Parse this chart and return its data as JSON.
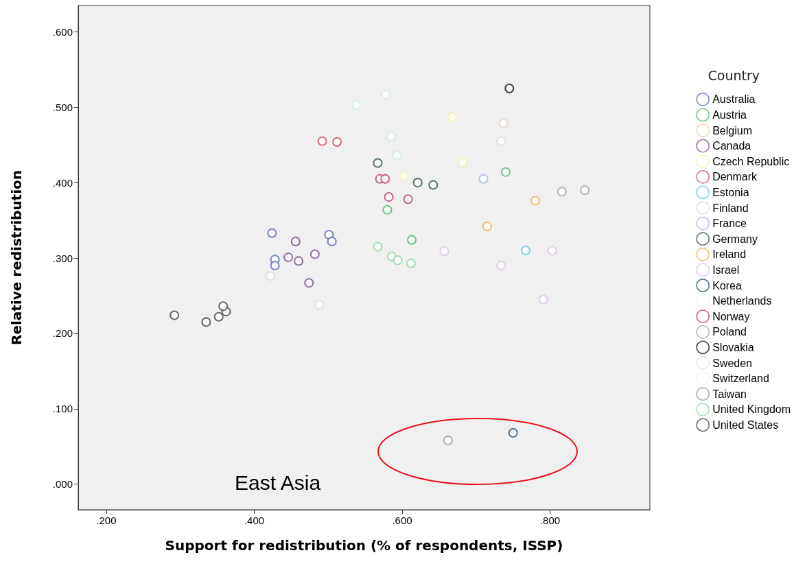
{
  "chart_data": {
    "type": "scatter",
    "xlabel": "Support for redistribution (% of respondents, ISSP)",
    "ylabel": "Relative redistribution",
    "legend_title": "Country",
    "legend": "right",
    "grid": false,
    "marker": "circle",
    "annotations": [
      "East Asia"
    ],
    "xlim": [
      0.162,
      0.935
    ],
    "ylim": [
      -0.034,
      0.635
    ],
    "xticks": [
      {
        "value": 0.2,
        "label": ".200"
      },
      {
        "value": 0.4,
        "label": ".400"
      },
      {
        "value": 0.6,
        "label": ".600"
      },
      {
        "value": 0.8,
        "label": ".800"
      }
    ],
    "yticks": [
      {
        "value": 0,
        "label": ".000"
      },
      {
        "value": 0.1,
        "label": ".100"
      },
      {
        "value": 0.2,
        "label": ".200"
      },
      {
        "value": 0.3,
        "label": ".300"
      },
      {
        "value": 0.4,
        "label": ".400"
      },
      {
        "value": 0.5,
        "label": ".500"
      },
      {
        "value": 0.6,
        "label": ".600"
      }
    ],
    "series": [
      {
        "name": "Australia",
        "color": "#5b6fb5",
        "x": [
          0.424,
          0.501,
          0.505,
          0.428,
          0.428
        ],
        "values": [
          0.333,
          0.331,
          0.322,
          0.298,
          0.29
        ]
      },
      {
        "name": "Austria",
        "color": "#4fb870",
        "x": [
          0.74,
          0.613,
          0.58
        ],
        "values": [
          0.414,
          0.324,
          0.364
        ]
      },
      {
        "name": "Belgium",
        "color": "#e8d2b8",
        "x": [
          0.737
        ],
        "values": [
          0.479
        ]
      },
      {
        "name": "Canada",
        "color": "#7b4e8c",
        "x": [
          0.456,
          0.446,
          0.46,
          0.482,
          0.474
        ],
        "values": [
          0.322,
          0.301,
          0.296,
          0.305,
          0.267
        ]
      },
      {
        "name": "Czech Republic",
        "color": "#f5f0a8",
        "x": [
          0.668,
          0.682,
          0.603
        ],
        "values": [
          0.487,
          0.427,
          0.409
        ]
      },
      {
        "name": "Denmark",
        "color": "#d65060",
        "x": [
          0.492,
          0.512
        ],
        "values": [
          0.455,
          0.454
        ]
      },
      {
        "name": "Estonia",
        "color": "#5fc8d8",
        "x": [
          0.767
        ],
        "values": [
          0.31
        ]
      },
      {
        "name": "Finland",
        "color": "#dcdcdc",
        "x": [
          0.734,
          0.422,
          0.488
        ],
        "values": [
          0.455,
          0.276,
          0.238
        ]
      },
      {
        "name": "France",
        "color": "#a8b8e0",
        "x": [
          0.71
        ],
        "values": [
          0.405
        ]
      },
      {
        "name": "Germany",
        "color": "#2f5a48",
        "x": [
          0.567,
          0.621,
          0.642
        ],
        "values": [
          0.426,
          0.4,
          0.397
        ]
      },
      {
        "name": "Ireland",
        "color": "#f0b050",
        "x": [
          0.78,
          0.715
        ],
        "values": [
          0.376,
          0.342
        ]
      },
      {
        "name": "Israel",
        "color": "#e0c0e8",
        "x": [
          0.657,
          0.734,
          0.803,
          0.791
        ],
        "values": [
          0.309,
          0.29,
          0.31,
          0.245
        ]
      },
      {
        "name": "Korea",
        "color": "#2a5878",
        "x": [
          0.75
        ],
        "values": [
          0.068
        ]
      },
      {
        "name": "Netherlands",
        "color": "#e4f4e4"
      },
      {
        "name": "Norway",
        "color": "#c04070",
        "x": [
          0.57,
          0.577,
          0.582,
          0.608
        ],
        "values": [
          0.405,
          0.405,
          0.381,
          0.378
        ]
      },
      {
        "name": "Poland",
        "color": "#a8a8a8",
        "x": [
          0.816,
          0.847
        ],
        "values": [
          0.388,
          0.39
        ]
      },
      {
        "name": "Slovakia",
        "color": "#111111",
        "x": [
          0.745
        ],
        "values": [
          0.525
        ]
      },
      {
        "name": "Sweden",
        "color": "#d0ece6",
        "x": [
          0.578,
          0.538,
          0.585,
          0.593
        ],
        "values": [
          0.517,
          0.503,
          0.461,
          0.436
        ]
      },
      {
        "name": "Switzerland",
        "color": "#f0f0f0"
      },
      {
        "name": "Taiwan",
        "color": "#9898b8",
        "x": [
          0.662
        ],
        "values": [
          0.058
        ]
      },
      {
        "name": "United Kingdom",
        "color": "#90d8a0",
        "x": [
          0.567,
          0.586,
          0.594,
          0.612
        ],
        "values": [
          0.315,
          0.302,
          0.297,
          0.293
        ]
      },
      {
        "name": "United States",
        "color": "#484848",
        "x": [
          0.292,
          0.335,
          0.352,
          0.362,
          0.358
        ],
        "values": [
          0.224,
          0.215,
          0.222,
          0.229,
          0.236
        ]
      }
    ]
  }
}
